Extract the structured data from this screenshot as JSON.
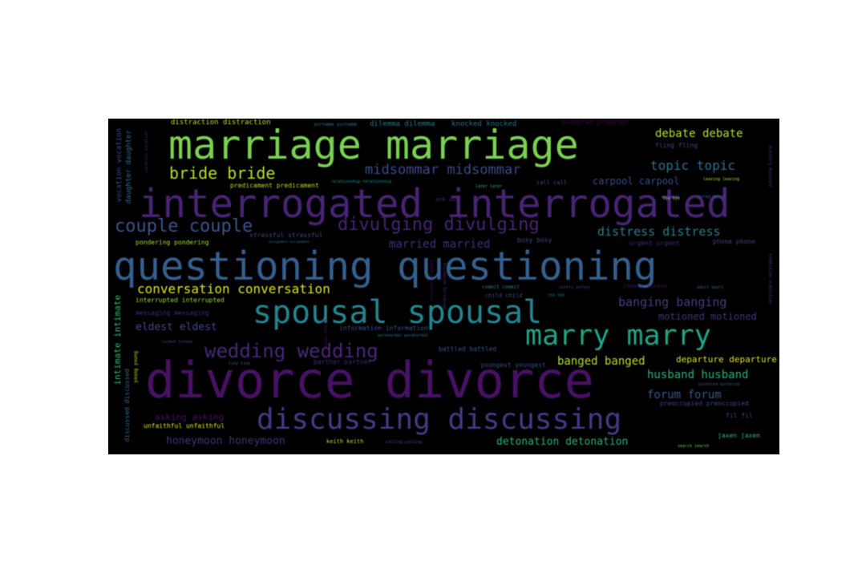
{
  "colors": {
    "background": "#000000",
    "page": "#ffffff",
    "palette": [
      "#440154",
      "#482878",
      "#3e4989",
      "#31688e",
      "#26828e",
      "#1f9e89",
      "#35b779",
      "#6ece58",
      "#b5de2b",
      "#fde725"
    ]
  },
  "words": {
    "marriage": "marriage marriage",
    "interrogated": "interrogated interrogated",
    "questioning": "questioning questioning",
    "divorce": "divorce divorce",
    "spousal": "spousal spousal",
    "discussing": "discussing discussing",
    "marry": "marry marry",
    "wedding": "wedding wedding",
    "divulging": "divulging divulging",
    "couple": "couple couple",
    "bride": "bride bride",
    "midsommar": "midsommar midsommar",
    "debate": "debate debate",
    "topic": "topic topic",
    "distress": "distress distress",
    "conversation": "conversation conversation",
    "banging": "banging banging",
    "banged": "banged banged",
    "husband": "husband husband",
    "forum": "forum forum",
    "detonation": "detonation detonation",
    "honeymoon": "honeymoon honeymoon",
    "married": "married married",
    "eldest": "eldest eldest",
    "carpool": "carpool carpool",
    "intimate": "intimate intimate",
    "distraction": "distraction distraction",
    "dilemma": "dilemma dilemma",
    "knocked": "knocked knocked",
    "asking": "asking asking",
    "motioned": "motioned motioned",
    "departure": "departure departure",
    "vocation": "vocation vocation",
    "daughter": "daughter daughter",
    "predicament": "predicament predicament",
    "pondering": "pondering pondering",
    "stressful": "stressful stressful",
    "interrupted": "interrupted interrupted",
    "messaging": "messaging messaging",
    "information": "information information",
    "battled": "battled battled",
    "partner": "partner partner",
    "youngest": "youngest youngest",
    "unfaithful": "unfaithful unfaithful",
    "keith": "keith keith",
    "calling": "calling calling",
    "jaxen": "jaxen jaxen",
    "fling": "fling fling",
    "fil": "fil fil",
    "preoccupied": "preoccupied preoccupied",
    "urgent": "urgent urgent",
    "phone": "phone phone",
    "busy": "busy busy",
    "commit": "commit commit",
    "safety": "safety safety",
    "jaxens": "jaxens jaxens",
    "adult": "adult adult",
    "call": "call call",
    "ask": "ask ask",
    "later": "later later",
    "relationship": "relationship relationship",
    "bored": "bored bored",
    "leaving": "leaving leaving",
    "bothered": "bothered bothered",
    "search": "search search",
    "child": "child child",
    "tbh": "tbh tbh",
    "paranormal": "paranormal paranormal",
    "locked": "locked locked",
    "prompted": "prompted prompted",
    "vacation": "vacation vacation",
    "discussed": "discussed discussed",
    "young": "young young",
    "transition": "transition transition",
    "ministry": "ministry ministry",
    "bye": "bye bye",
    "stressed": "stressed stressed",
    "wondering": "wondering wondering",
    "assignment": "assignment assignment",
    "tiny": "tiny tiny",
    "heated": "heated heated",
    "surname": "surname surname"
  }
}
